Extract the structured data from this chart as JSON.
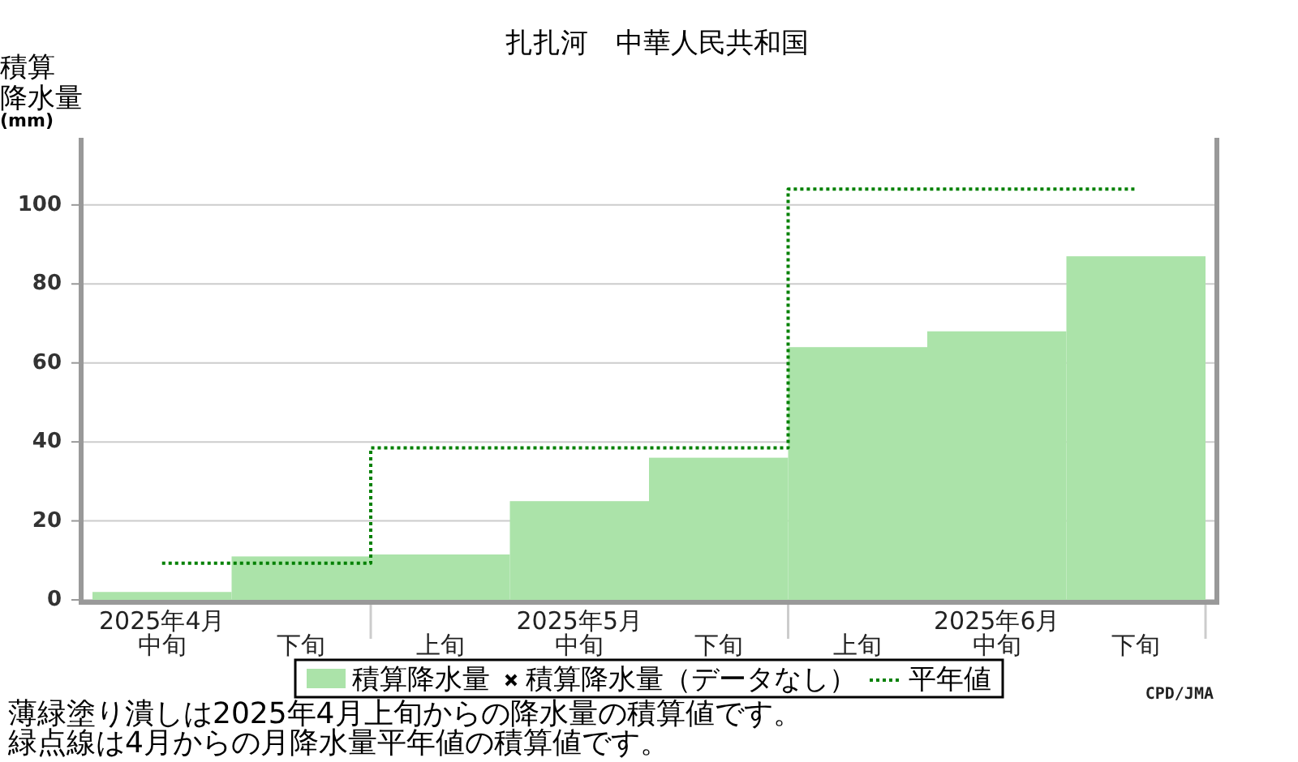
{
  "chart_data": {
    "type": "bar",
    "title": "扎扎河　中華人民共和国",
    "ylabel": "積算降水量(mm)",
    "categories": [
      "2025年4月中旬",
      "下旬",
      "上旬",
      "2025年5月中旬",
      "下旬",
      "上旬",
      "2025年6月中旬",
      "下旬"
    ],
    "series": [
      {
        "name": "積算降水量",
        "color": "#abe3a9",
        "values": [
          2,
          11,
          11.5,
          25,
          36,
          64,
          68,
          87
        ]
      },
      {
        "name": "積算降水量（データなし）",
        "type": "scatter",
        "marker": "cross",
        "color": "#000000",
        "values": [
          null,
          null,
          null,
          null,
          null,
          null,
          null,
          null
        ]
      },
      {
        "name": "平年値",
        "type": "step",
        "line_style": "dotted",
        "color": "#008000",
        "values": [
          9.3,
          9.3,
          38.5,
          38.5,
          38.5,
          104,
          104,
          104
        ]
      }
    ],
    "ylim": [
      0,
      117
    ],
    "yticks": [
      0,
      20,
      40,
      60,
      80,
      100
    ],
    "grid": "y",
    "legend": "bottom",
    "annotations": [
      "薄緑塗り潰しは2025年4月上旬からの降水量の積算値です。",
      "緑点線は4月からの月降水量平年値の積算値です。",
      "CPD/JMA"
    ]
  }
}
